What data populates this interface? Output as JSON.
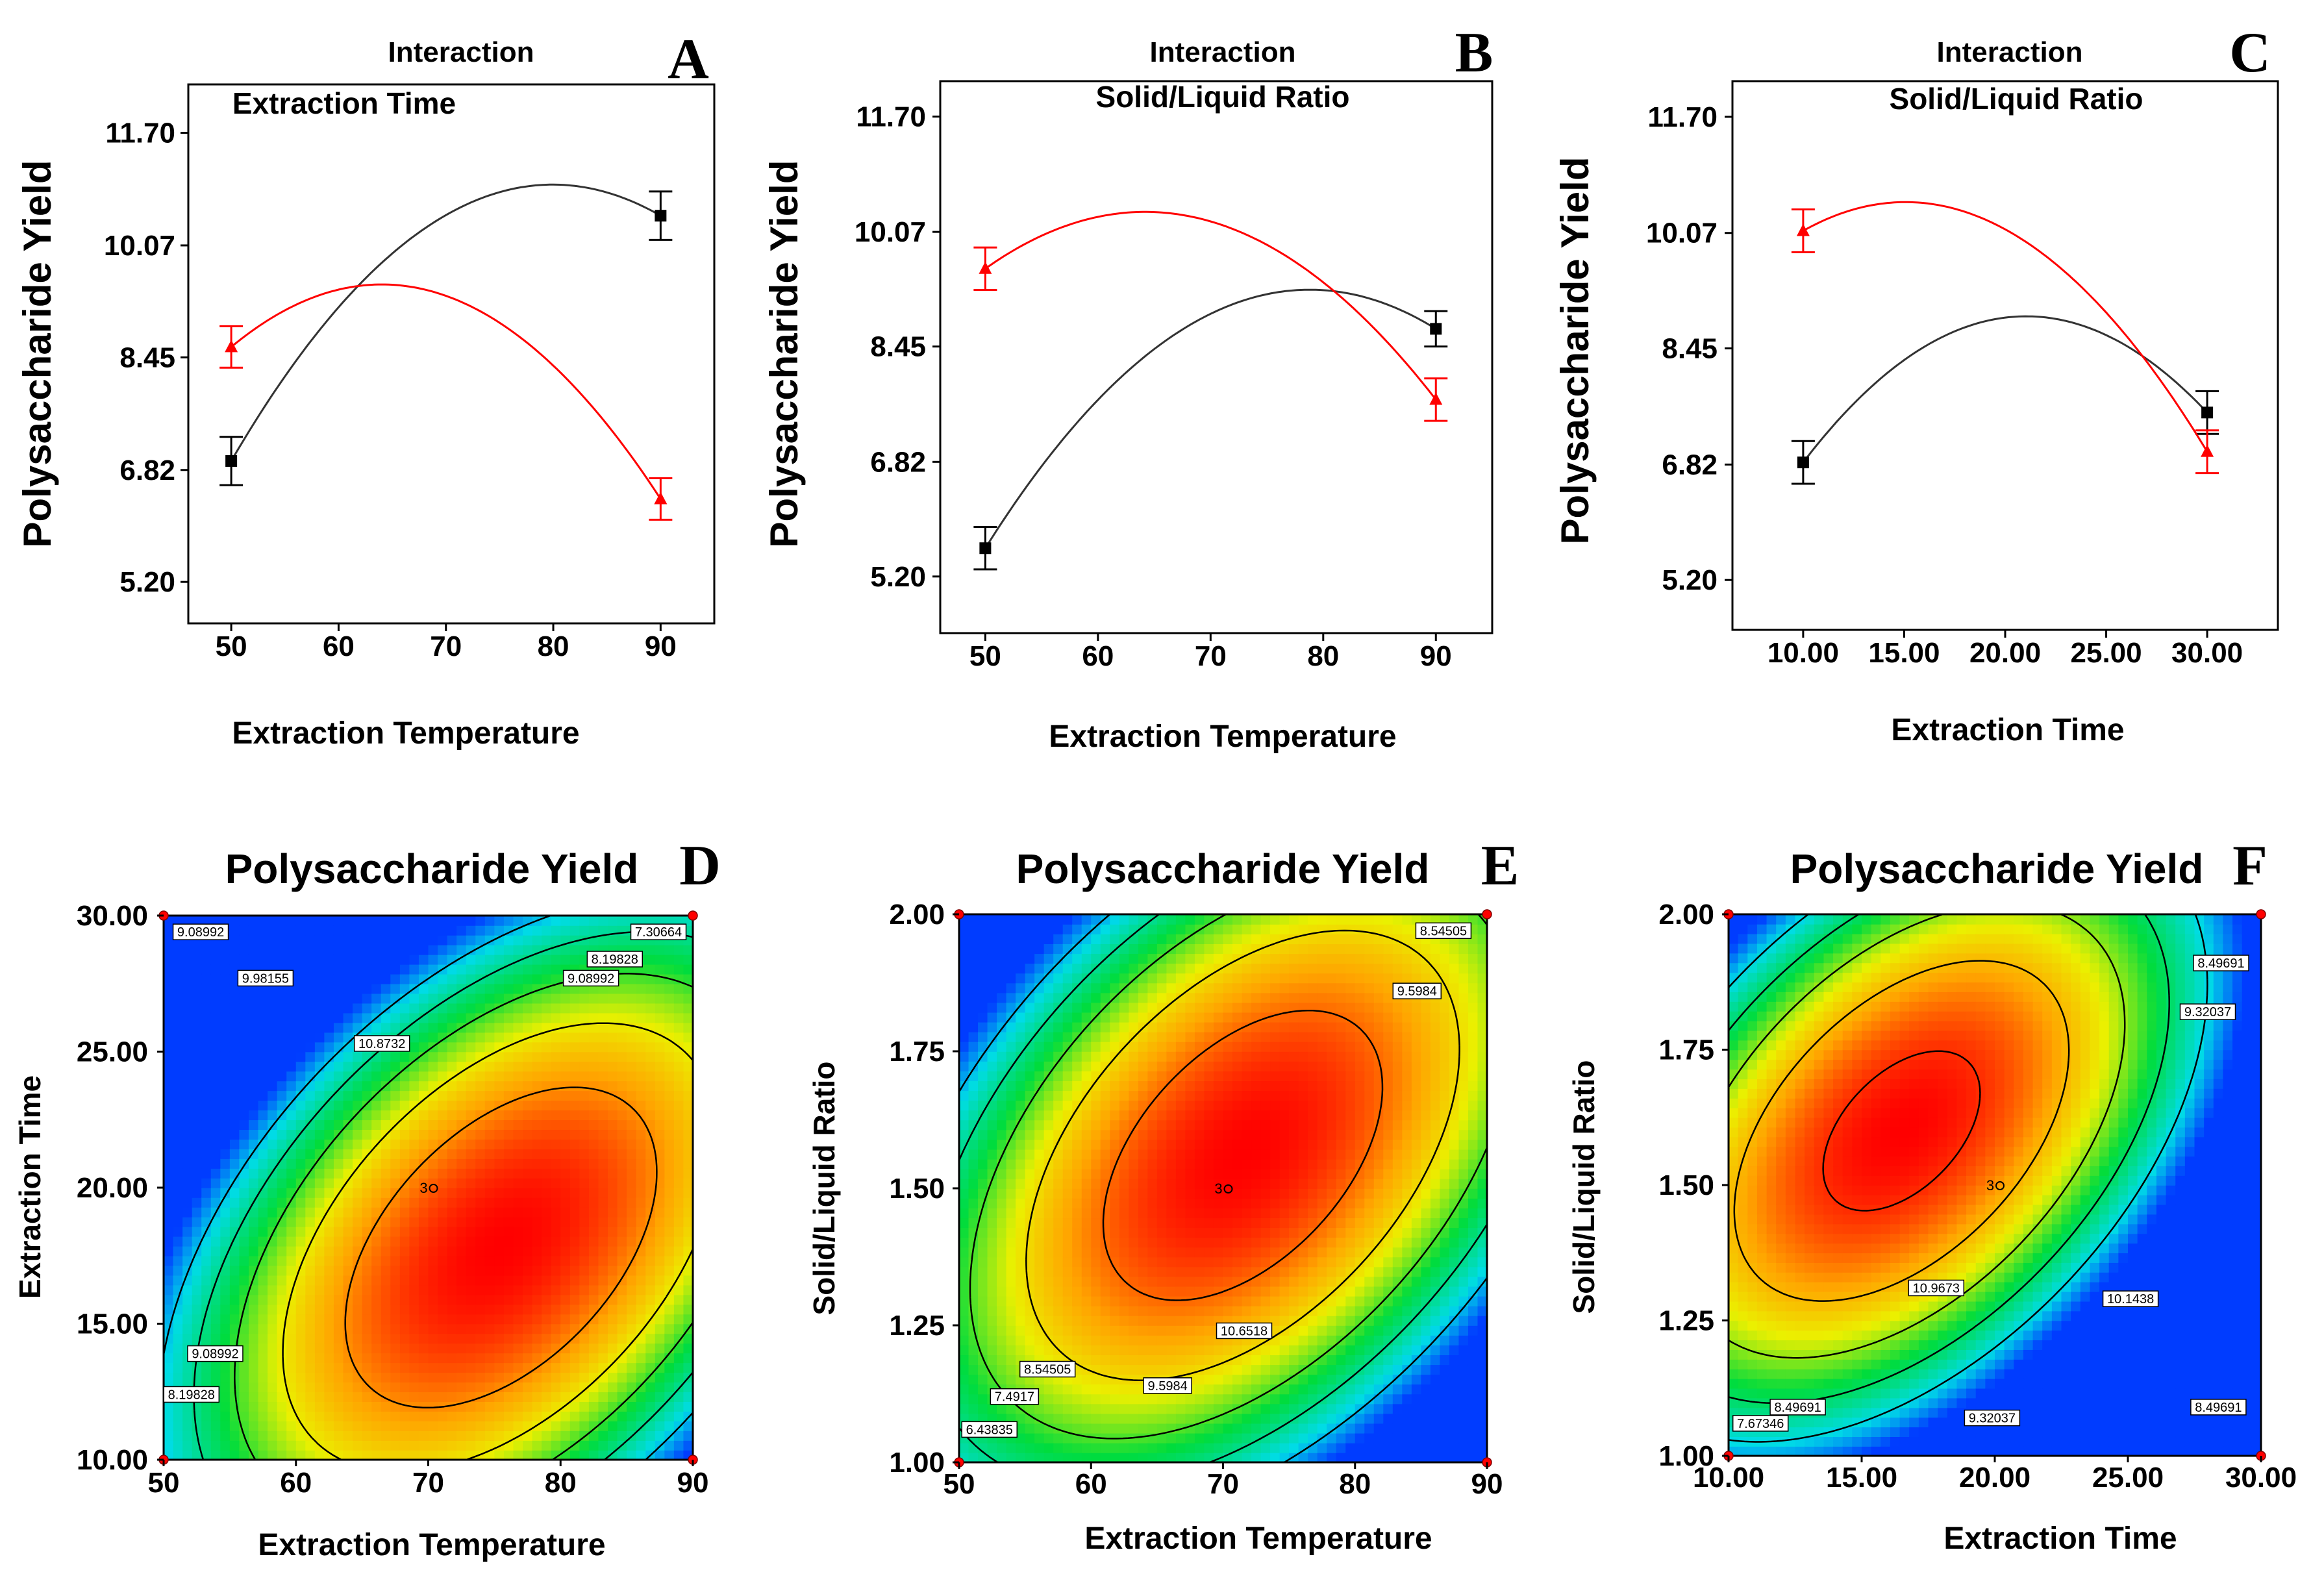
{
  "figure": {
    "colors": {
      "red_series": "#ff0000",
      "black_series": "#000000",
      "contour_line": "#000000",
      "design_point": "#ff0000"
    }
  },
  "chart_data": [
    {
      "panel": "A",
      "type": "line",
      "header": "Interaction",
      "factor_label": "Extraction Time",
      "xlabel": "Extraction Temperature",
      "ylabel": "Polysaccharide Yield",
      "xlim": [
        46,
        95
      ],
      "ylim": [
        4.6,
        12.4
      ],
      "xticks": [
        "50",
        "60",
        "70",
        "80",
        "90"
      ],
      "xtick_values": [
        50,
        60,
        70,
        80,
        90
      ],
      "yticks": [
        "5.20",
        "6.82",
        "8.45",
        "10.07",
        "11.70"
      ],
      "ytick_values": [
        5.2,
        6.82,
        8.45,
        10.07,
        11.7
      ],
      "series": [
        {
          "name": "black",
          "color": "#000000",
          "marker": "square",
          "points": [
            [
              50,
              6.95
            ],
            [
              90,
              10.5
            ]
          ],
          "errors": [
            0.35,
            0.35
          ],
          "curve": [
            [
              50,
              6.95
            ],
            [
              80,
              10.95
            ],
            [
              90,
              10.5
            ]
          ]
        },
        {
          "name": "red",
          "color": "#ff0000",
          "marker": "triangle",
          "points": [
            [
              50,
              8.6
            ],
            [
              90,
              6.4
            ]
          ],
          "errors": [
            0.3,
            0.3
          ],
          "curve": [
            [
              50,
              8.6
            ],
            [
              63,
              9.5
            ],
            [
              90,
              6.4
            ]
          ]
        }
      ]
    },
    {
      "panel": "B",
      "type": "line",
      "header": "Interaction",
      "factor_label": "Solid/Liquid Ratio",
      "xlabel": "Extraction Temperature",
      "ylabel": "Polysaccharide Yield",
      "xlim": [
        46,
        95
      ],
      "ylim": [
        4.4,
        12.2
      ],
      "xticks": [
        "50",
        "60",
        "70",
        "80",
        "90"
      ],
      "xtick_values": [
        50,
        60,
        70,
        80,
        90
      ],
      "yticks": [
        "5.20",
        "6.82",
        "8.45",
        "10.07",
        "11.70"
      ],
      "ytick_values": [
        5.2,
        6.82,
        8.45,
        10.07,
        11.7
      ],
      "series": [
        {
          "name": "black",
          "color": "#000000",
          "marker": "square",
          "points": [
            [
              50,
              5.6
            ],
            [
              90,
              8.7
            ]
          ],
          "errors": [
            0.3,
            0.25
          ],
          "curve": [
            [
              50,
              5.6
            ],
            [
              78,
              9.25
            ],
            [
              90,
              8.7
            ]
          ]
        },
        {
          "name": "red",
          "color": "#ff0000",
          "marker": "triangle",
          "points": [
            [
              50,
              9.55
            ],
            [
              90,
              7.7
            ]
          ],
          "errors": [
            0.3,
            0.3
          ],
          "curve": [
            [
              50,
              9.55
            ],
            [
              65,
              10.35
            ],
            [
              90,
              7.7
            ]
          ]
        }
      ]
    },
    {
      "panel": "C",
      "type": "line",
      "header": "Interaction",
      "factor_label": "Solid/Liquid Ratio",
      "xlabel": "Extraction Time",
      "ylabel": "Polysaccharide Yield",
      "xlim": [
        6.5,
        33.5
      ],
      "ylim": [
        4.5,
        12.2
      ],
      "xticks": [
        "10.00",
        "15.00",
        "20.00",
        "25.00",
        "30.00"
      ],
      "xtick_values": [
        10,
        15,
        20,
        25,
        30
      ],
      "yticks": [
        "5.20",
        "6.82",
        "8.45",
        "10.07",
        "11.70"
      ],
      "ytick_values": [
        5.2,
        6.82,
        8.45,
        10.07,
        11.7
      ],
      "series": [
        {
          "name": "black",
          "color": "#000000",
          "marker": "square",
          "points": [
            [
              10,
              6.85
            ],
            [
              30,
              7.55
            ]
          ],
          "errors": [
            0.3,
            0.3
          ],
          "curve": [
            [
              10,
              6.85
            ],
            [
              21,
              8.9
            ],
            [
              30,
              7.55
            ]
          ]
        },
        {
          "name": "red",
          "color": "#ff0000",
          "marker": "triangle",
          "points": [
            [
              10,
              10.1
            ],
            [
              30,
              7.0
            ]
          ],
          "errors": [
            0.3,
            0.3
          ],
          "curve": [
            [
              10,
              10.1
            ],
            [
              15.5,
              10.5
            ],
            [
              30,
              7.0
            ]
          ]
        }
      ]
    },
    {
      "panel": "D",
      "type": "heatmap",
      "title": "Polysaccharide Yield",
      "xlabel": "Extraction Temperature",
      "ylabel": "Extraction Time",
      "xlim": [
        50,
        90
      ],
      "ylim": [
        10,
        30
      ],
      "xticks": [
        "50",
        "60",
        "70",
        "80",
        "90"
      ],
      "xtick_values": [
        50,
        60,
        70,
        80,
        90
      ],
      "yticks": [
        "10.00",
        "15.00",
        "20.00",
        "25.00",
        "30.00"
      ],
      "ytick_values": [
        10,
        15,
        20,
        25,
        30
      ],
      "optimum": [
        75.5,
        17.8
      ],
      "max_value": 11.8,
      "contour_levels": [
        7.30664,
        8.19828,
        9.08992,
        9.98155,
        10.8732
      ],
      "contour_labels": [
        {
          "text": "9.08992",
          "at": [
            52.8,
            29.4
          ]
        },
        {
          "text": "7.30664",
          "at": [
            87.4,
            29.4
          ]
        },
        {
          "text": "8.19828",
          "at": [
            84.1,
            28.4
          ]
        },
        {
          "text": "9.98155",
          "at": [
            57.7,
            27.7
          ]
        },
        {
          "text": "9.08992",
          "at": [
            82.3,
            27.7
          ]
        },
        {
          "text": "10.8732",
          "at": [
            66.5,
            25.3
          ]
        },
        {
          "text": "9.08992",
          "at": [
            53.9,
            13.9
          ]
        },
        {
          "text": "8.19828",
          "at": [
            52.1,
            12.4
          ]
        }
      ],
      "center_label": {
        "text": "3",
        "at": [
          70,
          20
        ]
      }
    },
    {
      "panel": "E",
      "type": "heatmap",
      "title": "Polysaccharide Yield",
      "xlabel": "Extraction Temperature",
      "ylabel": "Solid/Liquid Ratio",
      "xlim": [
        50,
        90
      ],
      "ylim": [
        1.0,
        2.0
      ],
      "xticks": [
        "50",
        "60",
        "70",
        "80",
        "90"
      ],
      "xtick_values": [
        50,
        60,
        70,
        80,
        90
      ],
      "yticks": [
        "1.00",
        "1.25",
        "1.50",
        "1.75",
        "2.00"
      ],
      "ytick_values": [
        1.0,
        1.25,
        1.5,
        1.75,
        2.0
      ],
      "optimum": [
        71.5,
        1.56
      ],
      "max_value": 11.4,
      "contour_levels": [
        6.43835,
        7.4917,
        8.54505,
        9.5984,
        10.6518
      ],
      "contour_labels": [
        {
          "text": "8.54505",
          "at": [
            86.7,
            1.97
          ]
        },
        {
          "text": "9.5984",
          "at": [
            84.7,
            1.86
          ]
        },
        {
          "text": "10.6518",
          "at": [
            71.6,
            1.24
          ]
        },
        {
          "text": "8.54505",
          "at": [
            56.7,
            1.17
          ]
        },
        {
          "text": "9.5984",
          "at": [
            65.8,
            1.14
          ]
        },
        {
          "text": "7.4917",
          "at": [
            54.2,
            1.12
          ]
        },
        {
          "text": "6.43835",
          "at": [
            52.3,
            1.06
          ]
        }
      ],
      "center_label": {
        "text": "3",
        "at": [
          70,
          1.5
        ]
      }
    },
    {
      "panel": "F",
      "type": "heatmap",
      "title": "Polysaccharide Yield",
      "xlabel": "Extraction Time",
      "ylabel": "Solid/Liquid Ratio",
      "xlim": [
        10,
        30
      ],
      "ylim": [
        1.0,
        2.0
      ],
      "xticks": [
        "10.00",
        "15.00",
        "20.00",
        "25.00",
        "30.00"
      ],
      "xtick_values": [
        10,
        15,
        20,
        25,
        30
      ],
      "yticks": [
        "1.00",
        "1.25",
        "1.50",
        "1.75",
        "2.00"
      ],
      "ytick_values": [
        1.0,
        1.25,
        1.5,
        1.75,
        2.0
      ],
      "optimum": [
        16.5,
        1.6
      ],
      "max_value": 11.2,
      "contour_levels": [
        7.67346,
        8.49691,
        9.32037,
        10.1438,
        10.9673
      ],
      "contour_labels": [
        {
          "text": "8.49691",
          "at": [
            28.5,
            1.91
          ]
        },
        {
          "text": "9.32037",
          "at": [
            28.0,
            1.82
          ]
        },
        {
          "text": "10.9673",
          "at": [
            17.8,
            1.31
          ]
        },
        {
          "text": "10.1438",
          "at": [
            25.1,
            1.29
          ]
        },
        {
          "text": "8.49691",
          "at": [
            12.6,
            1.09
          ]
        },
        {
          "text": "9.32037",
          "at": [
            19.9,
            1.07
          ]
        },
        {
          "text": "8.49691",
          "at": [
            28.4,
            1.09
          ]
        },
        {
          "text": "7.67346",
          "at": [
            11.2,
            1.06
          ]
        }
      ],
      "center_label": {
        "text": "3",
        "at": [
          20,
          1.5
        ]
      }
    }
  ]
}
